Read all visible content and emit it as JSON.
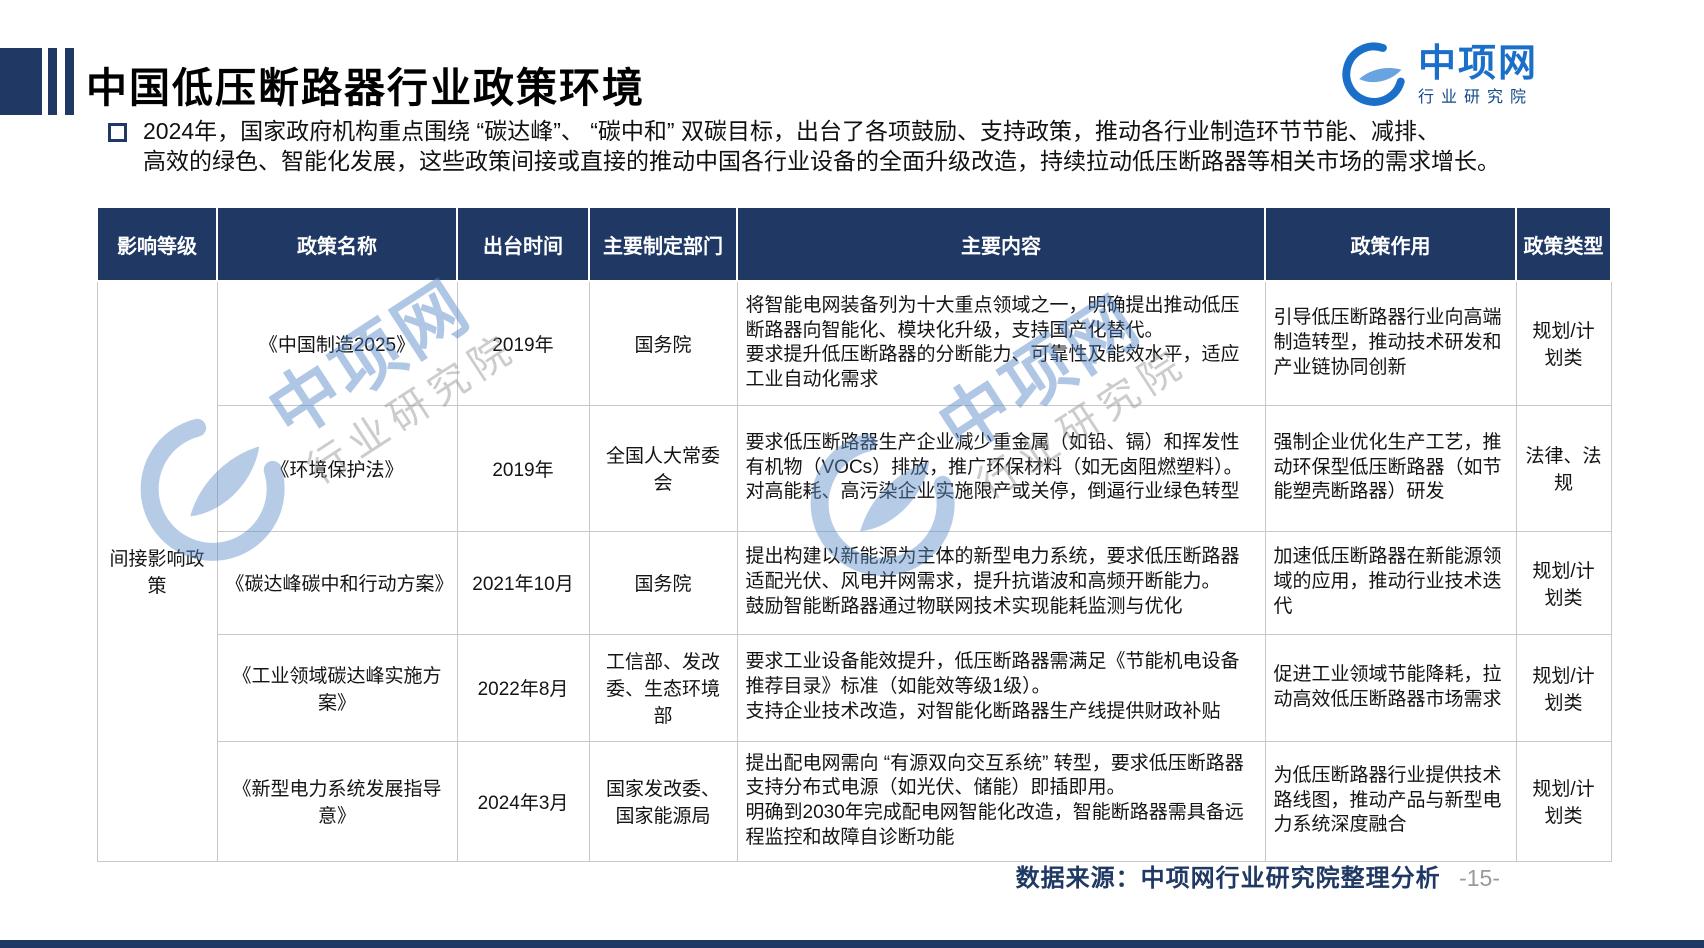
{
  "slide": {
    "title": "中国低压断路器行业政策环境",
    "intro_lines": [
      "2024年，国家政府机构重点围绕 “碳达峰”、 “碳中和” 双碳目标，出台了各项鼓励、支持政策，推动各行业制造环节节能、减排、",
      "高效的绿色、智能化发展，这些政策间接或直接的推动中国各行业设备的全面升级改造，持续拉动低压断路器等相关市场的需求增长。"
    ],
    "footer_source": "数据来源：中项网行业研究院整理分析",
    "page_number": "-15-"
  },
  "logo": {
    "name": "中项网",
    "subtitle": "行业研究院",
    "icon": "ccpd-swirl-icon",
    "brand_color": "#1A6FC9"
  },
  "table": {
    "headers": [
      "影响等级",
      "政策名称",
      "出台时间",
      "主要制定部门",
      "主要内容",
      "政策作用",
      "政策类型"
    ],
    "impact_level": "间接影响政策",
    "rows": [
      {
        "name": "《中国制造2025》",
        "date": "2019年",
        "department": "国务院",
        "content": "将智能电网装备列为十大重点领域之一，明确提出推动低压断路器向智能化、模块化升级，支持国产化替代。\n要求提升低压断路器的分断能力、可靠性及能效水平，适应工业自动化需求",
        "effect": "引导低压断路器行业向高端制造转型，推动技术研发和产业链协同创新",
        "type": "规划/计划类"
      },
      {
        "name": "《环境保护法》",
        "date": "2019年",
        "department": "全国人大常委会",
        "content": "要求低压断路器生产企业减少重金属（如铅、镉）和挥发性有机物（VOCs）排放，推广环保材料（如无卤阻燃塑料）。\n对高能耗、高污染企业实施限产或关停，倒逼行业绿色转型",
        "effect": "强制企业优化生产工艺，推动环保型低压断路器（如节能塑壳断路器）研发",
        "type": "法律、法规"
      },
      {
        "name": "《碳达峰碳中和行动方案》",
        "date": "2021年10月",
        "department": "国务院",
        "content": "提出构建以新能源为主体的新型电力系统，要求低压断路器适配光伏、风电并网需求，提升抗谐波和高频开断能力。\n鼓励智能断路器通过物联网技术实现能耗监测与优化",
        "effect": "加速低压断路器在新能源领域的应用，推动行业技术迭代",
        "type": "规划/计划类"
      },
      {
        "name": "《工业领域碳达峰实施方案》",
        "date": "2022年8月",
        "department": "工信部、发改委、生态环境部",
        "content": "要求工业设备能效提升，低压断路器需满足《节能机电设备推荐目录》标准（如能效等级1级）。\n支持企业技术改造，对智能化断路器生产线提供财政补贴",
        "effect": "促进工业领域节能降耗，拉动高效低压断路器市场需求",
        "type": "规划/计划类"
      },
      {
        "name": "《新型电力系统发展指导意》",
        "date": "2024年3月",
        "department": "国家发改委、国家能源局",
        "content": "提出配电网需向 “有源双向交互系统” 转型，要求低压断路器支持分布式电源（如光伏、储能）即插即用。\n明确到2030年完成配电网智能化改造，智能断路器需具备远程监控和故障自诊断功能",
        "effect": "为低压断路器行业提供技术路线图，推动产品与新型电力系统深度融合",
        "type": "规划/计划类"
      }
    ]
  },
  "colors": {
    "navy": "#1F3864",
    "brand_blue": "#1A6FC9",
    "table_border": "#c8c8c8",
    "page_number_gray": "#9a9a9a"
  }
}
